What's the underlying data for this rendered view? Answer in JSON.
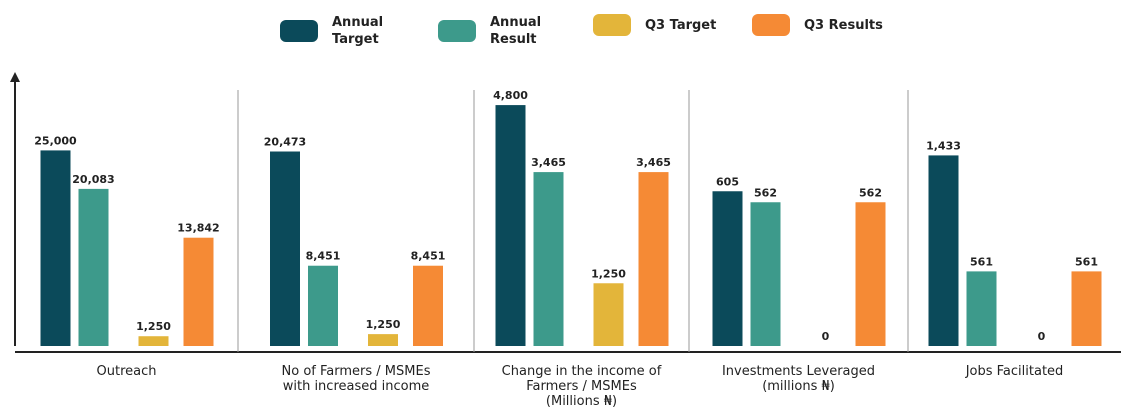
{
  "chart_data": {
    "type": "bar",
    "categories": [
      "Outreach",
      "No of Farmers / MSMEs with increased income",
      "Change in the income of Farmers / MSMEs (Millions ₦)",
      "Investments Leveraged (millions ₦)",
      "Jobs Facilitated"
    ],
    "series": [
      {
        "name": "Annual Target",
        "color": "#0b4a5a",
        "values": [
          25000,
          20473,
          4800,
          605,
          1433
        ],
        "value_labels": [
          "25,000",
          "20,473",
          "4,800",
          "605",
          "1,433"
        ]
      },
      {
        "name": "Annual Result",
        "color": "#3d9a8b",
        "values": [
          20083,
          8451,
          3465,
          562,
          561
        ],
        "value_labels": [
          "20,083",
          "8,451",
          "3,465",
          "562",
          "561"
        ]
      },
      {
        "name": "Q3 Target",
        "color": "#e3b53a",
        "values": [
          1250,
          1250,
          1250,
          0,
          0
        ],
        "value_labels": [
          "1,250",
          "1,250",
          "1,250",
          "0",
          "0"
        ]
      },
      {
        "name": "Q3 Results",
        "color": "#f58a35",
        "values": [
          13842,
          8451,
          3465,
          562,
          561
        ],
        "value_labels": [
          "13,842",
          "8,451",
          "3,465",
          "562",
          "561"
        ]
      }
    ],
    "ylim": [
      [
        0,
        34000
      ],
      [
        0,
        28000
      ],
      [
        0,
        5300
      ],
      [
        0,
        1040
      ],
      [
        0,
        2000
      ]
    ]
  }
}
